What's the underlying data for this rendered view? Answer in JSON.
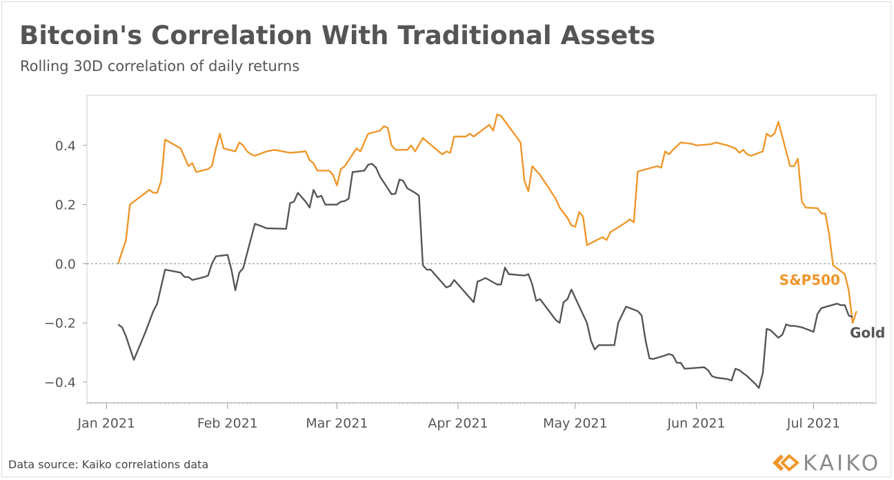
{
  "header": {
    "title": "Bitcoin's Correlation With Traditional Assets",
    "subtitle": "Rolling 30D correlation of daily returns"
  },
  "footer": {
    "source": "Data source: Kaiko correlations data",
    "logo_text": "KAIKO"
  },
  "colors": {
    "sp500": "#f0962a",
    "gold": "#555555",
    "logo": "#f0962a",
    "axis": "#999999",
    "zero_line": "#888888"
  },
  "chart_data": {
    "type": "line",
    "title": "Bitcoin's Correlation With Traditional Assets",
    "subtitle": "Rolling 30D correlation of daily returns",
    "xlabel": "",
    "ylabel": "",
    "x_range": [
      "2020-12-27",
      "2021-07-17"
    ],
    "ylim": [
      -0.47,
      0.57
    ],
    "x_ticks": [
      {
        "date": "2021-01-01",
        "label": "Jan 2021"
      },
      {
        "date": "2021-02-01",
        "label": "Feb 2021"
      },
      {
        "date": "2021-03-01",
        "label": "Mar 2021"
      },
      {
        "date": "2021-04-01",
        "label": "Apr 2021"
      },
      {
        "date": "2021-05-01",
        "label": "May 2021"
      },
      {
        "date": "2021-06-01",
        "label": "Jun 2021"
      },
      {
        "date": "2021-07-01",
        "label": "Jul 2021"
      }
    ],
    "y_ticks": [
      {
        "value": 0.4,
        "label": "0.4"
      },
      {
        "value": 0.2,
        "label": "0.2"
      },
      {
        "value": 0.0,
        "label": "0.0"
      },
      {
        "value": -0.2,
        "label": "−0.2"
      },
      {
        "value": -0.4,
        "label": "−0.4"
      }
    ],
    "grid": false,
    "zero_line": true,
    "legend": "direct-labels-at-line-end",
    "series": [
      {
        "name": "S&P500",
        "color": "#f0962a",
        "points": [
          [
            "2021-01-04",
            0.0
          ],
          [
            "2021-01-06",
            0.08
          ],
          [
            "2021-01-07",
            0.2
          ],
          [
            "2021-01-11",
            0.24
          ],
          [
            "2021-01-12",
            0.25
          ],
          [
            "2021-01-13",
            0.24
          ],
          [
            "2021-01-14",
            0.24
          ],
          [
            "2021-01-15",
            0.28
          ],
          [
            "2021-01-16",
            0.42
          ],
          [
            "2021-01-20",
            0.39
          ],
          [
            "2021-01-21",
            0.36
          ],
          [
            "2021-01-22",
            0.33
          ],
          [
            "2021-01-23",
            0.34
          ],
          [
            "2021-01-24",
            0.31
          ],
          [
            "2021-01-27",
            0.32
          ],
          [
            "2021-01-28",
            0.33
          ],
          [
            "2021-01-29",
            0.39
          ],
          [
            "2021-01-30",
            0.44
          ],
          [
            "2021-01-31",
            0.39
          ],
          [
            "2021-02-03",
            0.38
          ],
          [
            "2021-02-04",
            0.41
          ],
          [
            "2021-02-05",
            0.4
          ],
          [
            "2021-02-06",
            0.38
          ],
          [
            "2021-02-07",
            0.37
          ],
          [
            "2021-02-08",
            0.365
          ],
          [
            "2021-02-11",
            0.38
          ],
          [
            "2021-02-13",
            0.385
          ],
          [
            "2021-02-17",
            0.375
          ],
          [
            "2021-02-21",
            0.38
          ],
          [
            "2021-02-22",
            0.35
          ],
          [
            "2021-02-23",
            0.34
          ],
          [
            "2021-02-24",
            0.315
          ],
          [
            "2021-02-27",
            0.315
          ],
          [
            "2021-02-28",
            0.3
          ],
          [
            "2021-03-01",
            0.265
          ],
          [
            "2021-03-02",
            0.32
          ],
          [
            "2021-03-03",
            0.33
          ],
          [
            "2021-03-06",
            0.39
          ],
          [
            "2021-03-07",
            0.38
          ],
          [
            "2021-03-08",
            0.41
          ],
          [
            "2021-03-09",
            0.44
          ],
          [
            "2021-03-12",
            0.45
          ],
          [
            "2021-03-13",
            0.465
          ],
          [
            "2021-03-14",
            0.46
          ],
          [
            "2021-03-15",
            0.4
          ],
          [
            "2021-03-16",
            0.385
          ],
          [
            "2021-03-19",
            0.385
          ],
          [
            "2021-03-20",
            0.4
          ],
          [
            "2021-03-21",
            0.38
          ],
          [
            "2021-03-23",
            0.425
          ],
          [
            "2021-03-27",
            0.38
          ],
          [
            "2021-03-28",
            0.37
          ],
          [
            "2021-03-29",
            0.38
          ],
          [
            "2021-03-30",
            0.375
          ],
          [
            "2021-03-31",
            0.43
          ],
          [
            "2021-04-03",
            0.43
          ],
          [
            "2021-04-04",
            0.44
          ],
          [
            "2021-04-05",
            0.43
          ],
          [
            "2021-04-09",
            0.47
          ],
          [
            "2021-04-10",
            0.45
          ],
          [
            "2021-04-11",
            0.505
          ],
          [
            "2021-04-12",
            0.5
          ],
          [
            "2021-04-17",
            0.41
          ],
          [
            "2021-04-18",
            0.28
          ],
          [
            "2021-04-19",
            0.245
          ],
          [
            "2021-04-20",
            0.33
          ],
          [
            "2021-04-22",
            0.3
          ],
          [
            "2021-04-24",
            0.26
          ],
          [
            "2021-04-26",
            0.22
          ],
          [
            "2021-04-27",
            0.19
          ],
          [
            "2021-04-29",
            0.155
          ],
          [
            "2021-04-30",
            0.13
          ],
          [
            "2021-05-01",
            0.125
          ],
          [
            "2021-05-02",
            0.175
          ],
          [
            "2021-05-03",
            0.16
          ],
          [
            "2021-05-04",
            0.063
          ],
          [
            "2021-05-08",
            0.09
          ],
          [
            "2021-05-09",
            0.08
          ],
          [
            "2021-05-10",
            0.107
          ],
          [
            "2021-05-11",
            0.115
          ],
          [
            "2021-05-14",
            0.14
          ],
          [
            "2021-05-15",
            0.15
          ],
          [
            "2021-05-16",
            0.14
          ],
          [
            "2021-05-17",
            0.312
          ],
          [
            "2021-05-22",
            0.33
          ],
          [
            "2021-05-23",
            0.325
          ],
          [
            "2021-05-24",
            0.38
          ],
          [
            "2021-05-25",
            0.37
          ],
          [
            "2021-05-26",
            0.385
          ],
          [
            "2021-05-28",
            0.41
          ],
          [
            "2021-05-31",
            0.405
          ],
          [
            "2021-06-01",
            0.4
          ],
          [
            "2021-06-05",
            0.405
          ],
          [
            "2021-06-06",
            0.41
          ],
          [
            "2021-06-09",
            0.4
          ],
          [
            "2021-06-11",
            0.39
          ],
          [
            "2021-06-12",
            0.375
          ],
          [
            "2021-06-13",
            0.385
          ],
          [
            "2021-06-14",
            0.37
          ],
          [
            "2021-06-15",
            0.365
          ],
          [
            "2021-06-18",
            0.38
          ],
          [
            "2021-06-19",
            0.44
          ],
          [
            "2021-06-20",
            0.43
          ],
          [
            "2021-06-21",
            0.44
          ],
          [
            "2021-06-22",
            0.48
          ],
          [
            "2021-06-24",
            0.38
          ],
          [
            "2021-06-25",
            0.33
          ],
          [
            "2021-06-26",
            0.33
          ],
          [
            "2021-06-27",
            0.355
          ],
          [
            "2021-06-28",
            0.21
          ],
          [
            "2021-06-29",
            0.19
          ],
          [
            "2021-07-02",
            0.188
          ],
          [
            "2021-07-03",
            0.17
          ],
          [
            "2021-07-04",
            0.17
          ],
          [
            "2021-07-05",
            0.1
          ],
          [
            "2021-07-06",
            -0.005
          ],
          [
            "2021-07-07",
            -0.015
          ],
          [
            "2021-07-09",
            -0.035
          ],
          [
            "2021-07-10",
            -0.09
          ],
          [
            "2021-07-11",
            -0.2
          ],
          [
            "2021-07-12",
            -0.16
          ]
        ]
      },
      {
        "name": "Gold",
        "color": "#555555",
        "points": [
          [
            "2021-01-04",
            -0.205
          ],
          [
            "2021-01-05",
            -0.215
          ],
          [
            "2021-01-06",
            -0.245
          ],
          [
            "2021-01-08",
            -0.325
          ],
          [
            "2021-01-11",
            -0.23
          ],
          [
            "2021-01-13",
            -0.16
          ],
          [
            "2021-01-14",
            -0.135
          ],
          [
            "2021-01-16",
            -0.02
          ],
          [
            "2021-01-20",
            -0.03
          ],
          [
            "2021-01-21",
            -0.045
          ],
          [
            "2021-01-22",
            -0.045
          ],
          [
            "2021-01-23",
            -0.055
          ],
          [
            "2021-01-26",
            -0.045
          ],
          [
            "2021-01-27",
            -0.04
          ],
          [
            "2021-01-28",
            0.0
          ],
          [
            "2021-01-29",
            0.025
          ],
          [
            "2021-02-01",
            0.03
          ],
          [
            "2021-02-02",
            -0.02
          ],
          [
            "2021-02-03",
            -0.09
          ],
          [
            "2021-02-04",
            -0.03
          ],
          [
            "2021-02-05",
            -0.015
          ],
          [
            "2021-02-08",
            0.135
          ],
          [
            "2021-02-10",
            0.125
          ],
          [
            "2021-02-11",
            0.12
          ],
          [
            "2021-02-16",
            0.118
          ],
          [
            "2021-02-17",
            0.205
          ],
          [
            "2021-02-18",
            0.21
          ],
          [
            "2021-02-19",
            0.24
          ],
          [
            "2021-02-21",
            0.21
          ],
          [
            "2021-02-22",
            0.19
          ],
          [
            "2021-02-23",
            0.25
          ],
          [
            "2021-02-24",
            0.225
          ],
          [
            "2021-02-25",
            0.23
          ],
          [
            "2021-02-26",
            0.2
          ],
          [
            "2021-03-01",
            0.2
          ],
          [
            "2021-03-02",
            0.21
          ],
          [
            "2021-03-03",
            0.212
          ],
          [
            "2021-03-04",
            0.22
          ],
          [
            "2021-03-05",
            0.31
          ],
          [
            "2021-03-08",
            0.315
          ],
          [
            "2021-03-09",
            0.335
          ],
          [
            "2021-03-10",
            0.338
          ],
          [
            "2021-03-11",
            0.325
          ],
          [
            "2021-03-12",
            0.295
          ],
          [
            "2021-03-15",
            0.235
          ],
          [
            "2021-03-16",
            0.237
          ],
          [
            "2021-03-17",
            0.285
          ],
          [
            "2021-03-18",
            0.28
          ],
          [
            "2021-03-19",
            0.255
          ],
          [
            "2021-03-21",
            0.24
          ],
          [
            "2021-03-22",
            0.23
          ],
          [
            "2021-03-23",
            -0.005
          ],
          [
            "2021-03-24",
            -0.02
          ],
          [
            "2021-03-25",
            -0.02
          ],
          [
            "2021-03-27",
            -0.05
          ],
          [
            "2021-03-29",
            -0.08
          ],
          [
            "2021-03-30",
            -0.075
          ],
          [
            "2021-03-31",
            -0.055
          ],
          [
            "2021-04-05",
            -0.13
          ],
          [
            "2021-04-06",
            -0.06
          ],
          [
            "2021-04-07",
            -0.055
          ],
          [
            "2021-04-08",
            -0.048
          ],
          [
            "2021-04-11",
            -0.07
          ],
          [
            "2021-04-12",
            -0.07
          ],
          [
            "2021-04-13",
            -0.013
          ],
          [
            "2021-04-14",
            -0.035
          ],
          [
            "2021-04-18",
            -0.04
          ],
          [
            "2021-04-19",
            -0.035
          ],
          [
            "2021-04-20",
            -0.07
          ],
          [
            "2021-04-21",
            -0.125
          ],
          [
            "2021-04-22",
            -0.12
          ],
          [
            "2021-04-26",
            -0.19
          ],
          [
            "2021-04-27",
            -0.2
          ],
          [
            "2021-04-28",
            -0.13
          ],
          [
            "2021-04-29",
            -0.12
          ],
          [
            "2021-04-30",
            -0.087
          ],
          [
            "2021-05-04",
            -0.2
          ],
          [
            "2021-05-05",
            -0.26
          ],
          [
            "2021-05-06",
            -0.29
          ],
          [
            "2021-05-07",
            -0.275
          ],
          [
            "2021-05-10",
            -0.275
          ],
          [
            "2021-05-11",
            -0.275
          ],
          [
            "2021-05-12",
            -0.2
          ],
          [
            "2021-05-14",
            -0.145
          ],
          [
            "2021-05-17",
            -0.16
          ],
          [
            "2021-05-18",
            -0.175
          ],
          [
            "2021-05-19",
            -0.26
          ],
          [
            "2021-05-20",
            -0.32
          ],
          [
            "2021-05-21",
            -0.322
          ],
          [
            "2021-05-24",
            -0.31
          ],
          [
            "2021-05-25",
            -0.305
          ],
          [
            "2021-05-26",
            -0.31
          ],
          [
            "2021-05-27",
            -0.335
          ],
          [
            "2021-05-28",
            -0.335
          ],
          [
            "2021-05-29",
            -0.355
          ],
          [
            "2021-06-03",
            -0.35
          ],
          [
            "2021-06-04",
            -0.36
          ],
          [
            "2021-06-05",
            -0.38
          ],
          [
            "2021-06-06",
            -0.385
          ],
          [
            "2021-06-09",
            -0.39
          ],
          [
            "2021-06-10",
            -0.395
          ],
          [
            "2021-06-11",
            -0.355
          ],
          [
            "2021-06-12",
            -0.36
          ],
          [
            "2021-06-14",
            -0.38
          ],
          [
            "2021-06-16",
            -0.405
          ],
          [
            "2021-06-17",
            -0.42
          ],
          [
            "2021-06-18",
            -0.37
          ],
          [
            "2021-06-19",
            -0.22
          ],
          [
            "2021-06-20",
            -0.225
          ],
          [
            "2021-06-22",
            -0.25
          ],
          [
            "2021-06-23",
            -0.24
          ],
          [
            "2021-06-24",
            -0.205
          ],
          [
            "2021-06-25",
            -0.21
          ],
          [
            "2021-06-26",
            -0.21
          ],
          [
            "2021-06-28",
            -0.215
          ],
          [
            "2021-06-29",
            -0.22
          ],
          [
            "2021-07-01",
            -0.23
          ],
          [
            "2021-07-02",
            -0.17
          ],
          [
            "2021-07-03",
            -0.15
          ],
          [
            "2021-07-07",
            -0.135
          ],
          [
            "2021-07-08",
            -0.14
          ],
          [
            "2021-07-09",
            -0.14
          ],
          [
            "2021-07-10",
            -0.175
          ],
          [
            "2021-07-11",
            -0.18
          ]
        ]
      }
    ]
  }
}
